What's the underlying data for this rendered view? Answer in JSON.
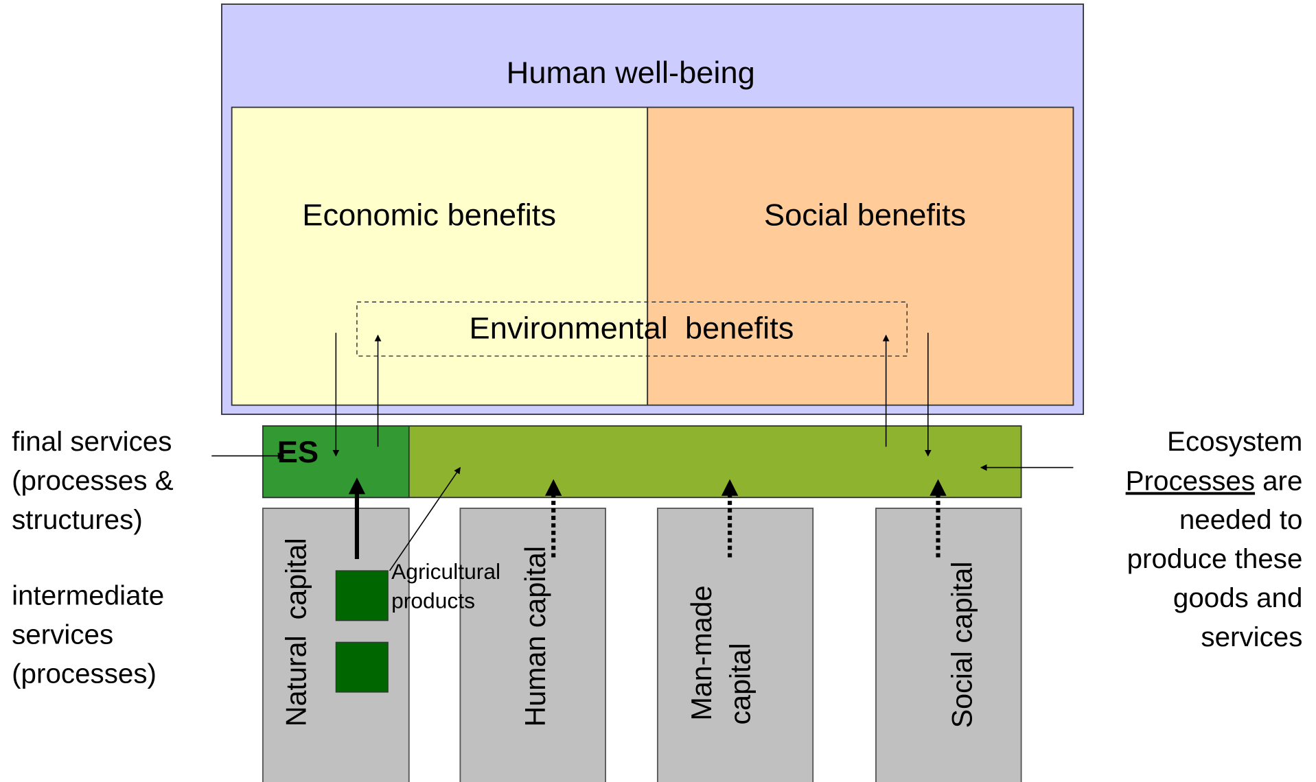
{
  "title": "Human well-being",
  "benefits": {
    "economic": "Economic benefits",
    "social": "Social benefits",
    "environmental": "Environmental  benefits"
  },
  "es_label": "ES",
  "left_notes": {
    "final": [
      "final services",
      "(processes &",
      "structures)"
    ],
    "intermediate": [
      "intermediate",
      "services",
      "(processes)"
    ]
  },
  "right_note": {
    "first": "Ecosystem",
    "underlined": "Processes",
    "rest": "are",
    "lines": [
      "needed to",
      "produce these",
      "goods and",
      "services"
    ]
  },
  "capitals": {
    "natural": "Natural  capital",
    "human": "Human capital",
    "man_made": [
      "Man-made",
      "capital"
    ],
    "social": "Social capital"
  },
  "agricultural": [
    "Agricultural",
    "products"
  ]
}
